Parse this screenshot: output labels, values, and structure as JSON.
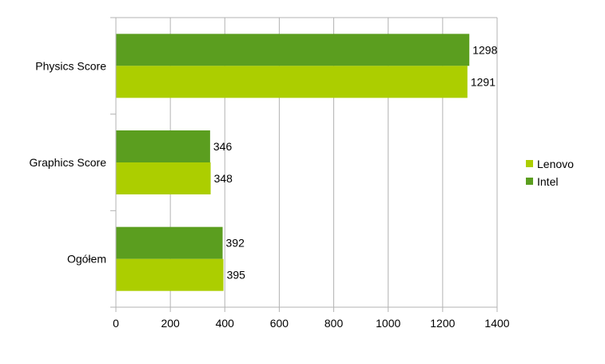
{
  "chart_data": {
    "type": "bar",
    "orientation": "horizontal",
    "categories": [
      "Physics Score",
      "Graphics Score",
      "Ogółem"
    ],
    "series": [
      {
        "name": "Intel",
        "values": [
          1298,
          346,
          392
        ],
        "color": "#5b9e1f"
      },
      {
        "name": "Lenovo",
        "values": [
          1291,
          348,
          395
        ],
        "color": "#acce00"
      }
    ],
    "xlim": [
      0,
      1400
    ],
    "xticks": [
      0,
      200,
      400,
      600,
      800,
      1000,
      1200,
      1400
    ],
    "grid": true,
    "legend": {
      "placement": "right",
      "entries": [
        {
          "name": "Lenovo",
          "color": "#acce00"
        },
        {
          "name": "Intel",
          "color": "#5b9e1f"
        }
      ]
    },
    "title": "",
    "xlabel": "",
    "ylabel": ""
  }
}
